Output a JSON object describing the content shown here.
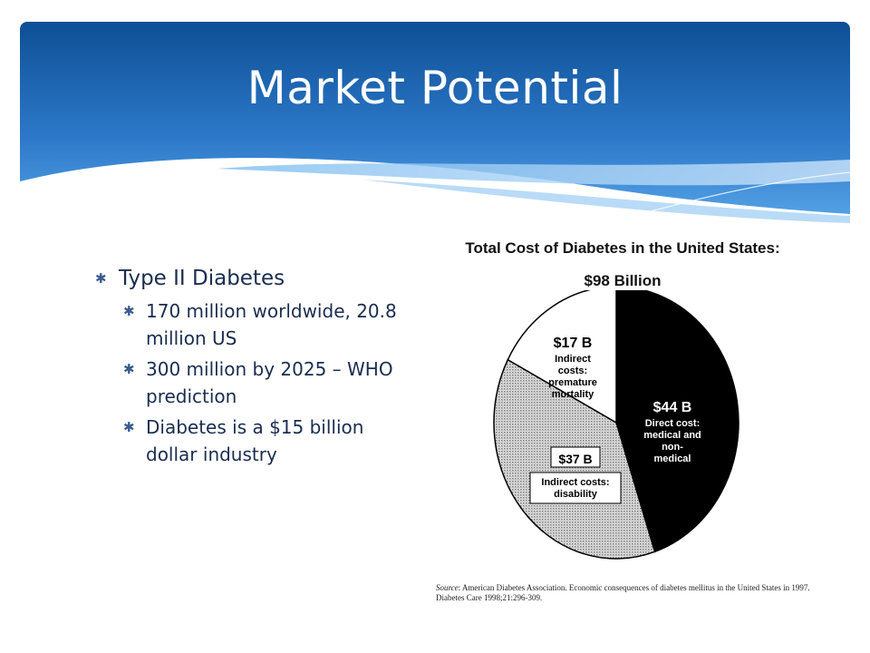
{
  "slide": {
    "title": "Market Potential"
  },
  "bullets": {
    "level1": "Type II Diabetes",
    "level2": [
      "170 million worldwide, 20.8 million US",
      "300 million by 2025 – WHO prediction",
      "Diabetes is a $15 billion dollar industry"
    ]
  },
  "chart_data": {
    "type": "pie",
    "title": "Total Cost of Diabetes in the United States:",
    "subtitle": "$98 Billion",
    "slices": [
      {
        "value_label": "$44 B",
        "value": 44,
        "lines": [
          "Direct cost:",
          "medical and",
          "non-",
          "medical"
        ],
        "fill": "black"
      },
      {
        "value_label": "$37 B",
        "value": 37,
        "lines": [
          "Indirect costs:",
          "disability"
        ],
        "fill": "stipple"
      },
      {
        "value_label": "$17 B",
        "value": 17,
        "lines": [
          "Indirect",
          "costs:",
          "premature",
          "mortality"
        ],
        "fill": "white"
      }
    ],
    "source_label": "Source",
    "source_text": ": American Diabetes Association. Economic consequences of diabetes mellitus in the United States in 1997. Diabetes Care 1998;21:296-309."
  },
  "colors": {
    "header_blue": "#1a5fa8",
    "header_light": "#4a9fe4",
    "text_dark": "#1a2d50"
  }
}
